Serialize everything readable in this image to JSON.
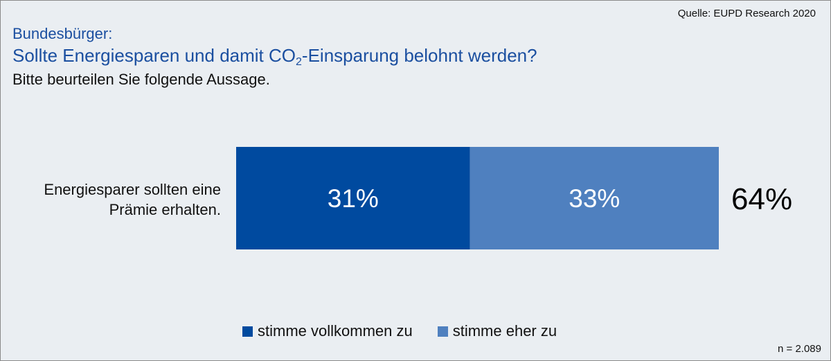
{
  "source": "Quelle: EUPD Research 2020",
  "title_line1": "Bundesbürger:",
  "title_line2": {
    "before_sub": "Sollte Energiesparen und damit CO",
    "sub": "2",
    "after_sub": "-Einsparung belohnt werden?"
  },
  "subtitle": "Bitte beurteilen Sie folgende Aussage.",
  "footnote": "n = 2.089",
  "chart_data": {
    "type": "bar",
    "orientation": "horizontal",
    "stacked": true,
    "categories": [
      "Energiesparer sollten eine Prämie erhalten."
    ],
    "category_label_lines": [
      "Energiesparer sollten eine",
      "Prämie erhalten."
    ],
    "series": [
      {
        "name": "stimme vollkommen zu",
        "values": [
          31
        ],
        "labels": [
          "31%"
        ],
        "color": "#004a9f"
      },
      {
        "name": "stimme eher zu",
        "values": [
          33
        ],
        "labels": [
          "33%"
        ],
        "color": "#4f80bf"
      }
    ],
    "totals": [
      64
    ],
    "total_labels": [
      "64%"
    ],
    "xlim": [
      0,
      64
    ],
    "legend_position": "bottom",
    "grid": false
  }
}
